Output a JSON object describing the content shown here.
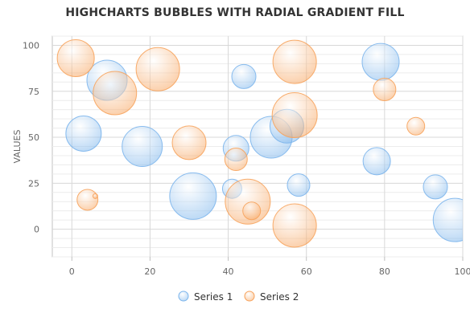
{
  "chart_data": {
    "type": "scatter",
    "subtype": "bubble",
    "title": "HIGHCHARTS BUBBLES WITH RADIAL GRADIENT FILL",
    "xlabel": "",
    "ylabel": "VALUES",
    "xlim": [
      -5,
      100
    ],
    "ylim": [
      -15,
      105
    ],
    "x_ticks": [
      0,
      20,
      40,
      60,
      80,
      100
    ],
    "y_ticks": [
      0,
      25,
      50,
      75,
      100
    ],
    "x_tick_labels": [
      "0",
      "20",
      "40",
      "60",
      "80",
      "100"
    ],
    "y_tick_labels": [
      "0",
      "25",
      "50",
      "75",
      "100"
    ],
    "grid": true,
    "minor_grid": true,
    "legend_position": "bottom-center",
    "series": [
      {
        "name": "Series 1",
        "color": "#7cb5ec",
        "points": [
          {
            "x": 3,
            "y": 52,
            "z": 22
          },
          {
            "x": 9,
            "y": 81,
            "z": 25
          },
          {
            "x": 18,
            "y": 45,
            "z": 25
          },
          {
            "x": 31,
            "y": 18,
            "z": 29
          },
          {
            "x": 41,
            "y": 22,
            "z": 12
          },
          {
            "x": 42,
            "y": 44,
            "z": 16
          },
          {
            "x": 44,
            "y": 83,
            "z": 15
          },
          {
            "x": 51,
            "y": 50,
            "z": 26
          },
          {
            "x": 55,
            "y": 56,
            "z": 21
          },
          {
            "x": 58,
            "y": 24,
            "z": 14
          },
          {
            "x": 78,
            "y": 37,
            "z": 17
          },
          {
            "x": 79,
            "y": 91,
            "z": 23
          },
          {
            "x": 93,
            "y": 23,
            "z": 15
          },
          {
            "x": 98,
            "y": 5,
            "z": 27
          }
        ]
      },
      {
        "name": "Series 2",
        "color": "#f7a35c",
        "points": [
          {
            "x": 1,
            "y": 93,
            "z": 23
          },
          {
            "x": 4,
            "y": 16,
            "z": 13
          },
          {
            "x": 6,
            "y": 18,
            "z": 3
          },
          {
            "x": 11,
            "y": 74,
            "z": 27
          },
          {
            "x": 22,
            "y": 87,
            "z": 27
          },
          {
            "x": 30,
            "y": 47,
            "z": 21
          },
          {
            "x": 42,
            "y": 38,
            "z": 14
          },
          {
            "x": 45,
            "y": 15,
            "z": 28
          },
          {
            "x": 46,
            "y": 10,
            "z": 11
          },
          {
            "x": 57,
            "y": 91,
            "z": 27
          },
          {
            "x": 57,
            "y": 62,
            "z": 28
          },
          {
            "x": 57,
            "y": 2,
            "z": 27
          },
          {
            "x": 80,
            "y": 76,
            "z": 14
          },
          {
            "x": 88,
            "y": 56,
            "z": 11
          }
        ]
      }
    ]
  }
}
